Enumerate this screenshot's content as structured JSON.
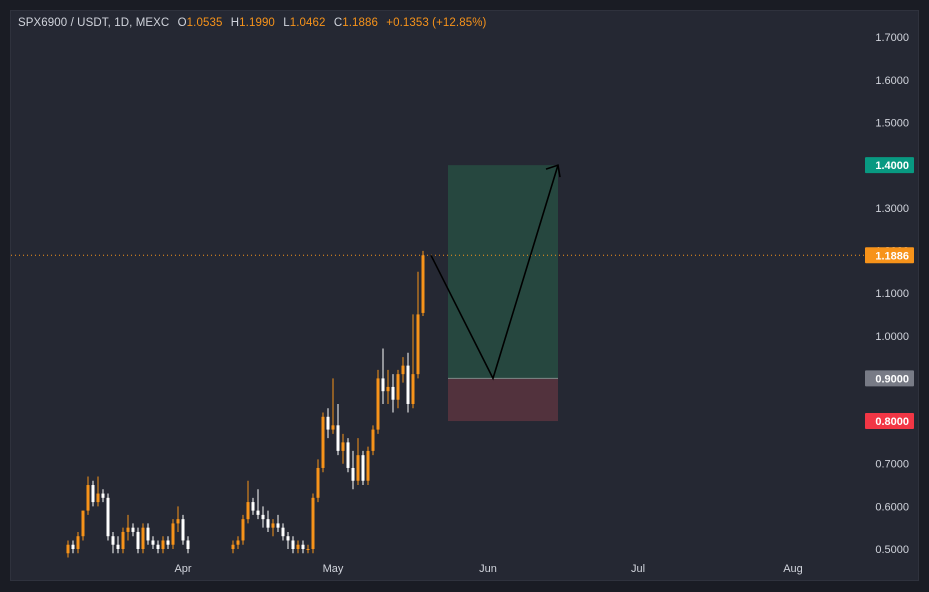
{
  "legend": {
    "symbol": "SPX6900 / USDT, 1D, MEXC",
    "open_label": "O",
    "open": "1.0535",
    "high_label": "H",
    "high": "1.1990",
    "low_label": "L",
    "low": "1.0462",
    "close_label": "C",
    "close": "1.1886",
    "change": "+0.1353 (+12.85%)"
  },
  "colors": {
    "background": "#252833",
    "up_candle": "#f7931a",
    "down_candle": "#ffffff",
    "target_zone": "#26473f",
    "stop_zone": "#52323d",
    "target_tag": "#089981",
    "entry_tag": "#787b86",
    "stop_tag": "#f23645",
    "price_tag": "#f7931a"
  },
  "chart_data": {
    "type": "candlestick",
    "ylim": [
      0.49,
      1.72
    ],
    "y_ticks": [
      "0.5000",
      "0.6000",
      "0.7000",
      "0.8000",
      "0.9000",
      "1.0000",
      "1.1000",
      "1.2000",
      "1.3000",
      "1.4000",
      "1.5000",
      "1.6000",
      "1.7000"
    ],
    "x_labels": [
      "Apr",
      "May",
      "Jun",
      "Jul",
      "Aug"
    ],
    "x_label_days": [
      23,
      53,
      84,
      114,
      145
    ],
    "grid": false,
    "candles": [
      [
        0,
        0.49,
        0.52,
        0.48,
        0.51
      ],
      [
        1,
        0.51,
        0.52,
        0.49,
        0.5
      ],
      [
        2,
        0.5,
        0.54,
        0.49,
        0.53
      ],
      [
        3,
        0.53,
        0.59,
        0.52,
        0.59
      ],
      [
        4,
        0.59,
        0.67,
        0.58,
        0.65
      ],
      [
        5,
        0.65,
        0.66,
        0.6,
        0.61
      ],
      [
        6,
        0.61,
        0.67,
        0.6,
        0.63
      ],
      [
        7,
        0.63,
        0.64,
        0.61,
        0.62
      ],
      [
        8,
        0.62,
        0.63,
        0.52,
        0.53
      ],
      [
        9,
        0.53,
        0.54,
        0.49,
        0.51
      ],
      [
        10,
        0.51,
        0.53,
        0.49,
        0.5
      ],
      [
        11,
        0.5,
        0.55,
        0.49,
        0.54
      ],
      [
        12,
        0.54,
        0.58,
        0.52,
        0.55
      ],
      [
        13,
        0.55,
        0.56,
        0.53,
        0.54
      ],
      [
        14,
        0.54,
        0.55,
        0.49,
        0.5
      ],
      [
        15,
        0.5,
        0.56,
        0.49,
        0.55
      ],
      [
        16,
        0.55,
        0.56,
        0.51,
        0.52
      ],
      [
        17,
        0.52,
        0.53,
        0.5,
        0.51
      ],
      [
        18,
        0.51,
        0.52,
        0.49,
        0.5
      ],
      [
        19,
        0.5,
        0.53,
        0.49,
        0.52
      ],
      [
        20,
        0.52,
        0.53,
        0.5,
        0.51
      ],
      [
        21,
        0.51,
        0.57,
        0.5,
        0.56
      ],
      [
        22,
        0.56,
        0.6,
        0.54,
        0.57
      ],
      [
        23,
        0.57,
        0.58,
        0.51,
        0.52
      ],
      [
        24,
        0.52,
        0.53,
        0.49,
        0.5
      ],
      [
        33,
        0.5,
        0.52,
        0.49,
        0.51
      ],
      [
        34,
        0.51,
        0.53,
        0.5,
        0.52
      ],
      [
        35,
        0.52,
        0.58,
        0.51,
        0.57
      ],
      [
        36,
        0.57,
        0.66,
        0.56,
        0.61
      ],
      [
        37,
        0.61,
        0.62,
        0.58,
        0.59
      ],
      [
        38,
        0.59,
        0.64,
        0.57,
        0.58
      ],
      [
        39,
        0.58,
        0.6,
        0.55,
        0.57
      ],
      [
        40,
        0.57,
        0.59,
        0.54,
        0.55
      ],
      [
        41,
        0.55,
        0.57,
        0.53,
        0.56
      ],
      [
        42,
        0.56,
        0.58,
        0.54,
        0.55
      ],
      [
        43,
        0.55,
        0.56,
        0.52,
        0.53
      ],
      [
        44,
        0.53,
        0.54,
        0.5,
        0.52
      ],
      [
        45,
        0.52,
        0.53,
        0.49,
        0.5
      ],
      [
        46,
        0.5,
        0.52,
        0.49,
        0.51
      ],
      [
        47,
        0.51,
        0.52,
        0.49,
        0.5
      ],
      [
        48,
        0.5,
        0.51,
        0.49,
        0.5
      ],
      [
        49,
        0.5,
        0.63,
        0.49,
        0.62
      ],
      [
        50,
        0.62,
        0.71,
        0.61,
        0.69
      ],
      [
        51,
        0.69,
        0.82,
        0.68,
        0.81
      ],
      [
        52,
        0.81,
        0.83,
        0.76,
        0.78
      ],
      [
        53,
        0.78,
        0.9,
        0.77,
        0.79
      ],
      [
        54,
        0.79,
        0.84,
        0.72,
        0.73
      ],
      [
        55,
        0.73,
        0.77,
        0.7,
        0.75
      ],
      [
        56,
        0.75,
        0.76,
        0.68,
        0.69
      ],
      [
        57,
        0.69,
        0.73,
        0.64,
        0.66
      ],
      [
        58,
        0.66,
        0.76,
        0.65,
        0.72
      ],
      [
        59,
        0.72,
        0.73,
        0.65,
        0.66
      ],
      [
        60,
        0.66,
        0.74,
        0.65,
        0.73
      ],
      [
        61,
        0.73,
        0.79,
        0.72,
        0.78
      ],
      [
        62,
        0.78,
        0.92,
        0.77,
        0.9
      ],
      [
        63,
        0.9,
        0.97,
        0.84,
        0.87
      ],
      [
        64,
        0.87,
        0.92,
        0.84,
        0.88
      ],
      [
        65,
        0.88,
        0.91,
        0.82,
        0.85
      ],
      [
        66,
        0.85,
        0.92,
        0.83,
        0.91
      ],
      [
        67,
        0.91,
        0.95,
        0.89,
        0.93
      ],
      [
        68,
        0.93,
        0.96,
        0.82,
        0.84
      ],
      [
        69,
        0.84,
        1.05,
        0.83,
        0.91
      ],
      [
        70,
        0.91,
        1.15,
        0.9,
        1.05
      ],
      [
        71,
        1.0535,
        1.199,
        1.0462,
        1.1886
      ]
    ],
    "x_day_min": -14,
    "x_day_max": 160,
    "position": {
      "entry": 0.9,
      "target": 1.4,
      "stop": 0.8,
      "entry_label": "0.9000",
      "target_label": "1.4000",
      "stop_label": "0.8000",
      "start_day": 77,
      "end_day": 98
    },
    "current_price": 1.1886,
    "current_price_label": "1.1886",
    "forecast_path": [
      [
        71,
        1.1886
      ],
      [
        85,
        0.9
      ],
      [
        98,
        1.4
      ]
    ]
  }
}
